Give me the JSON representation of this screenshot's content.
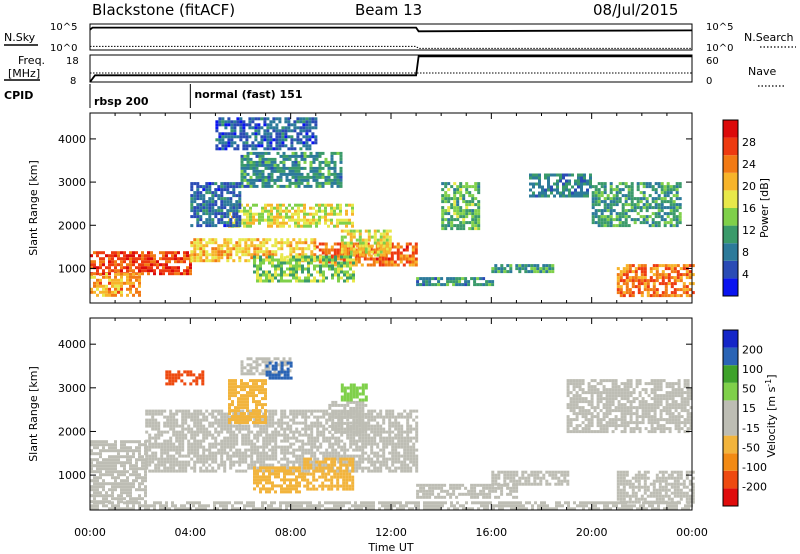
{
  "header": {
    "radar": "Blackstone (fitACF)",
    "beam": "Beam 13",
    "date": "08/Jul/2015"
  },
  "top_panels": {
    "nsky_label": "N.Sky",
    "nsky_ticks": [
      "10^5",
      "10^0"
    ],
    "nsearch_label": "N.Search",
    "nsearch_ticks": [
      "10^5",
      "10^0"
    ],
    "freq_label": "Freq.",
    "freq_unit": "[MHz]",
    "freq_ticks": [
      "18",
      "8"
    ],
    "nave_label": "Nave",
    "nave_ticks": [
      "60",
      "0"
    ],
    "cpid_label": "CPID",
    "cpid_segments": [
      {
        "name": "rbsp 200",
        "start_hour": 0
      },
      {
        "name": "normal (fast) 151",
        "start_hour": 4
      }
    ]
  },
  "colors": {
    "power_scale": [
      "#0a14f0",
      "#2a4bb5",
      "#2c7a9a",
      "#3a9a6a",
      "#7fd04a",
      "#e8e84a",
      "#f7b42a",
      "#f27a14",
      "#ee3a10",
      "#dc0a0a"
    ],
    "velocity_scale": [
      "#e00c0c",
      "#ee4a10",
      "#f28a14",
      "#f2b43c",
      "#bdbdb4",
      "#bdbdb4",
      "#7fd04a",
      "#3ea22a",
      "#2a64b5",
      "#1426c8"
    ],
    "line": "#000000"
  },
  "chart_data": [
    {
      "type": "heatmap",
      "panel": "power",
      "ylabel": "Slant Range [km]",
      "yticks": [
        1000,
        2000,
        3000,
        4000
      ],
      "ylim": [
        200,
        4600
      ],
      "xlim": [
        0,
        24
      ],
      "colorbar_label": "Power [dB]",
      "colorbar_ticks": [
        "4",
        "8",
        "12",
        "16",
        "20",
        "24",
        "28"
      ],
      "colorbar_range": [
        0,
        32
      ],
      "regions": [
        {
          "t0": 0,
          "t1": 4,
          "r0": 900,
          "r1": 1400,
          "val": 27
        },
        {
          "t0": 4,
          "t1": 9,
          "r0": 1150,
          "r1": 1700,
          "val": 20
        },
        {
          "t0": 9,
          "t1": 13,
          "r0": 1100,
          "r1": 1600,
          "val": 25
        },
        {
          "t0": 10,
          "t1": 12,
          "r0": 1300,
          "r1": 1900,
          "val": 18
        },
        {
          "t0": 5.5,
          "t1": 10.5,
          "r0": 2000,
          "r1": 2500,
          "val": 17
        },
        {
          "t0": 6.5,
          "t1": 10.5,
          "r0": 700,
          "r1": 1300,
          "val": 14
        },
        {
          "t0": 6,
          "t1": 10,
          "r0": 2900,
          "r1": 3700,
          "val": 10
        },
        {
          "t0": 4,
          "t1": 6,
          "r0": 2000,
          "r1": 3000,
          "val": 7
        },
        {
          "t0": 5,
          "t1": 9,
          "r0": 3800,
          "r1": 4500,
          "val": 6
        },
        {
          "t0": 0,
          "t1": 2,
          "r0": 400,
          "r1": 900,
          "val": 22
        },
        {
          "t0": 14,
          "t1": 15.5,
          "r0": 1900,
          "r1": 3000,
          "val": 13
        },
        {
          "t0": 16,
          "t1": 18.5,
          "r0": 900,
          "r1": 1100,
          "val": 11
        },
        {
          "t0": 13,
          "t1": 16,
          "r0": 600,
          "r1": 800,
          "val": 10
        },
        {
          "t0": 17.5,
          "t1": 20,
          "r0": 2700,
          "r1": 3200,
          "val": 9
        },
        {
          "t0": 20,
          "t1": 23.5,
          "r0": 2000,
          "r1": 3000,
          "val": 11
        },
        {
          "t0": 21,
          "t1": 24,
          "r0": 400,
          "r1": 1100,
          "val": 24
        }
      ]
    },
    {
      "type": "heatmap",
      "panel": "velocity",
      "ylabel": "Slant Range [km]",
      "yticks": [
        1000,
        2000,
        3000,
        4000
      ],
      "ylim": [
        200,
        4600
      ],
      "xlim": [
        0,
        24
      ],
      "colorbar_label": "Velocity [m s^-1]",
      "colorbar_ticks": [
        "-200",
        "-100",
        "-50",
        "-15",
        "15",
        "50",
        "100",
        "200"
      ],
      "colorbar_range": [
        -250,
        250
      ],
      "regions": [
        {
          "t0": 0,
          "t1": 2.2,
          "r0": 400,
          "r1": 1800,
          "val": 0
        },
        {
          "t0": 2.2,
          "t1": 13,
          "r0": 1100,
          "r1": 2500,
          "val": 0
        },
        {
          "t0": 6.5,
          "t1": 8.5,
          "r0": 600,
          "r1": 1200,
          "val": -60
        },
        {
          "t0": 8.5,
          "t1": 10.5,
          "r0": 650,
          "r1": 1400,
          "val": -70
        },
        {
          "t0": 5.5,
          "t1": 7,
          "r0": 2200,
          "r1": 3200,
          "val": -80
        },
        {
          "t0": 3,
          "t1": 4.5,
          "r0": 3100,
          "r1": 3400,
          "val": -180
        },
        {
          "t0": 6,
          "t1": 8,
          "r0": 3300,
          "r1": 3700,
          "val": -40
        },
        {
          "t0": 7,
          "t1": 8,
          "r0": 3200,
          "r1": 3600,
          "val": 180
        },
        {
          "t0": 9.5,
          "t1": 11,
          "r0": 2000,
          "r1": 2700,
          "val": 40
        },
        {
          "t0": 10,
          "t1": 11,
          "r0": 2700,
          "r1": 3100,
          "val": 70
        },
        {
          "t0": 0,
          "t1": 24,
          "r0": 200,
          "r1": 400,
          "val": 40
        },
        {
          "t0": 13,
          "t1": 17,
          "r0": 500,
          "r1": 800,
          "val": 0
        },
        {
          "t0": 16,
          "t1": 19,
          "r0": 800,
          "r1": 1100,
          "val": 0
        },
        {
          "t0": 19,
          "t1": 24,
          "r0": 2000,
          "r1": 3200,
          "val": 0
        },
        {
          "t0": 21,
          "t1": 24,
          "r0": 400,
          "r1": 1100,
          "val": 0
        }
      ]
    },
    {
      "type": "line",
      "panel": "n-sky",
      "xlim": [
        0,
        24
      ],
      "scale": "log",
      "series": [
        {
          "name": "N.Sky",
          "x": [
            0,
            0.1,
            13,
            13.1,
            18,
            24
          ],
          "values": [
            8000,
            20000,
            20000,
            4000,
            5000,
            6000
          ]
        },
        {
          "name": "N.Search",
          "x": [
            0,
            13,
            13.1,
            24
          ],
          "values": [
            5,
            5,
            2,
            2
          ]
        }
      ]
    },
    {
      "type": "line",
      "panel": "frequency",
      "xlim": [
        0,
        24
      ],
      "series": [
        {
          "name": "Freq.",
          "x": [
            0,
            0.2,
            13,
            13.1,
            24
          ],
          "values": [
            8,
            10.5,
            10.5,
            17.5,
            17.5
          ]
        },
        {
          "name": "Nave",
          "x": [
            0,
            24
          ],
          "values": [
            20,
            20
          ]
        }
      ]
    }
  ],
  "xaxis": {
    "label": "Time UT",
    "ticks": [
      "00:00",
      "04:00",
      "08:00",
      "12:00",
      "16:00",
      "20:00",
      "00:00"
    ],
    "tick_hours": [
      0,
      4,
      8,
      12,
      16,
      20,
      24
    ]
  }
}
